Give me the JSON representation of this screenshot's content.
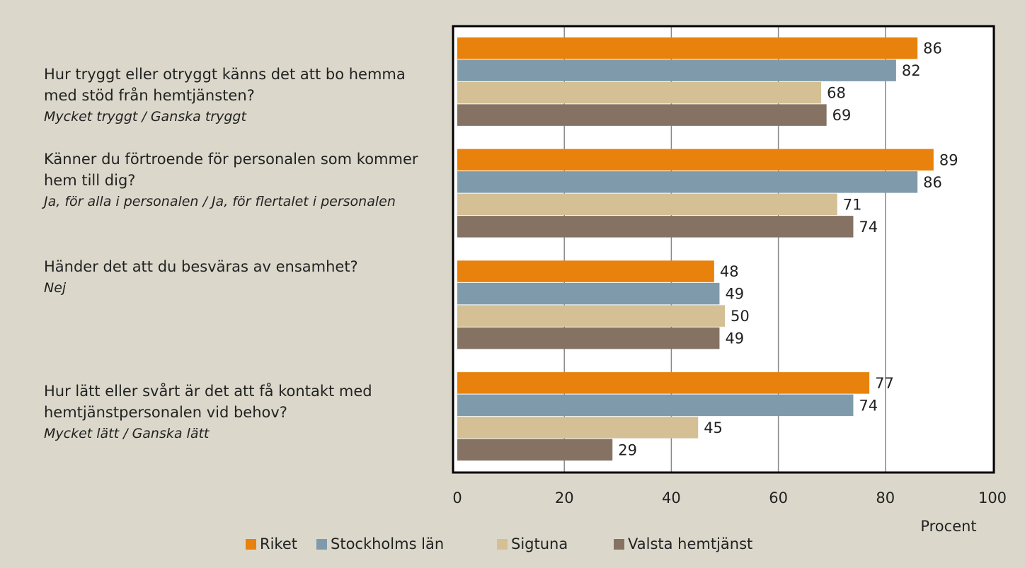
{
  "chart_data": {
    "type": "hbar",
    "categories": [
      "Hur tryggt eller otryggt känns det att bo hemma med stöd från hemtjänsten?",
      "Känner du förtroende för personalen som kommer hem till dig?",
      "Händer det att du besväras av ensamhet?",
      "Hur lätt eller svårt är det att få kontakt med hemtjänstpersonalen vid behov?"
    ],
    "category_answers": [
      "Mycket tryggt / Ganska tryggt",
      "Ja, för alla i personalen / Ja, för flertalet i personalen",
      "Nej",
      "Mycket lätt / Ganska lätt"
    ],
    "series": [
      {
        "name": "Riket",
        "color": "#e8820c",
        "values": [
          86,
          89,
          48,
          77
        ]
      },
      {
        "name": "Stockholms län",
        "color": "#7f9bab",
        "values": [
          82,
          86,
          49,
          74
        ]
      },
      {
        "name": "Sigtuna",
        "color": "#d4c094",
        "values": [
          68,
          71,
          50,
          45
        ]
      },
      {
        "name": "Valsta hemtjänst",
        "color": "#857262",
        "values": [
          69,
          74,
          49,
          29
        ]
      }
    ],
    "xlabel": "Procent",
    "xlim": [
      0,
      100
    ],
    "xticks": [
      0,
      20,
      40,
      60,
      80,
      100
    ],
    "grid": true,
    "legend": "bottom"
  }
}
